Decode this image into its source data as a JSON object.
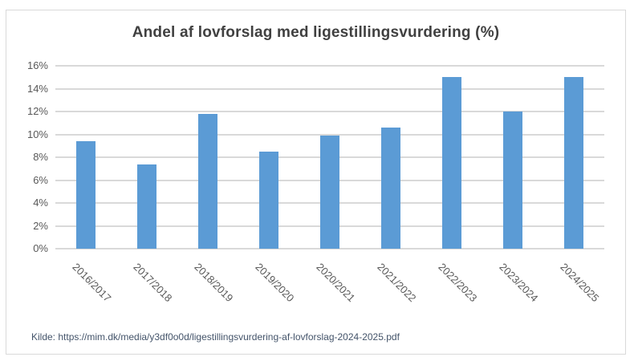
{
  "chart_data": {
    "type": "bar",
    "title": "Andel af lovforslag med ligestillingsvurdering (%)",
    "categories": [
      "2016/2017",
      "2017/2018",
      "2018/2019",
      "2019/2020",
      "2020/2021",
      "2021/2022",
      "2022/2023",
      "2023/2024",
      "2024/2025"
    ],
    "values": [
      9.4,
      7.4,
      11.8,
      8.5,
      9.9,
      10.6,
      15.0,
      12.0,
      15.0
    ],
    "xlabel": "",
    "ylabel": "",
    "ylim": [
      0,
      16
    ],
    "ytick_step": 2,
    "ytick_labels": [
      "0%",
      "2%",
      "4%",
      "6%",
      "8%",
      "10%",
      "12%",
      "14%",
      "16%"
    ],
    "grid": true,
    "legend": false,
    "colors": {
      "bar": "#5B9BD5",
      "gridline": "#D9D9D9",
      "axis_labels": "#595959",
      "title": "#404040",
      "frame_border": "#D9D9D9"
    }
  },
  "footer": {
    "source_text": "Kilde: https://mim.dk/media/y3df0o0d/ligestillingsvurdering-af-lovforslag-2024-2025.pdf",
    "color": "#44546A"
  }
}
